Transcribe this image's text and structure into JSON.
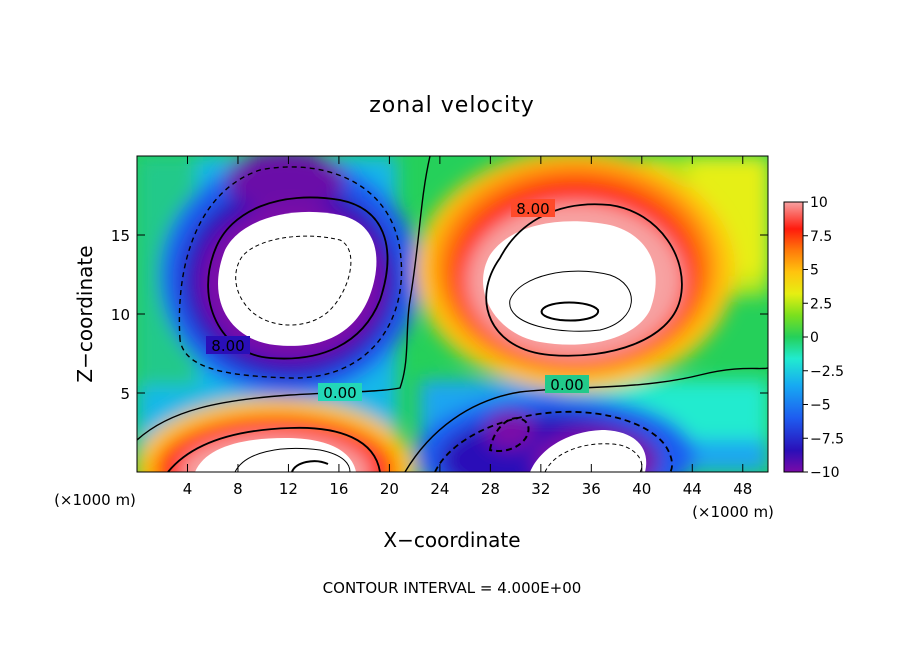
{
  "chart_data": {
    "type": "heatmap",
    "title": "zonal velocity",
    "xlabel": "X−coordinate",
    "ylabel": "Z−coordinate",
    "x_unit_left": "(×1000 m)",
    "x_unit_right": "(×1000 m)",
    "xlim": [
      0,
      50
    ],
    "ylim": [
      0,
      20
    ],
    "x_ticks": [
      4,
      8,
      12,
      16,
      20,
      24,
      28,
      32,
      36,
      40,
      44,
      48
    ],
    "y_ticks": [
      5,
      10,
      15
    ],
    "colorbar": {
      "min": -10,
      "max": 10,
      "tick_values": [
        10,
        7.5,
        5,
        2.5,
        0,
        -2.5,
        -5,
        -7.5,
        -10
      ],
      "tick_labels": [
        "10",
        "7.5",
        "5",
        "2.5",
        "0",
        "−2.5",
        "−5",
        "−7.5",
        "−10"
      ]
    },
    "contour_labels": [
      {
        "text": "8.00",
        "x": 30.5,
        "z": 16.6
      },
      {
        "text": "8.00",
        "x": 7.5,
        "z": 8.0
      },
      {
        "text": "0.00",
        "x": 16.4,
        "z": 5.0
      },
      {
        "text": "0.00",
        "x": 34.6,
        "z": 5.5
      }
    ],
    "features": [
      {
        "name": "negative-core-upper-left",
        "x": 11.5,
        "z": 12.0,
        "sign": "negative"
      },
      {
        "name": "positive-core-upper-right",
        "x": 34.0,
        "z": 10.5,
        "sign": "positive"
      },
      {
        "name": "positive-core-lower-left",
        "x": 11.5,
        "z": 1.0,
        "sign": "positive"
      },
      {
        "name": "negative-core-lower-right",
        "x": 33.5,
        "z": 1.0,
        "sign": "negative"
      }
    ],
    "footer": "CONTOUR INTERVAL = 4.000E+00",
    "grid": false,
    "legend_position": "right"
  }
}
